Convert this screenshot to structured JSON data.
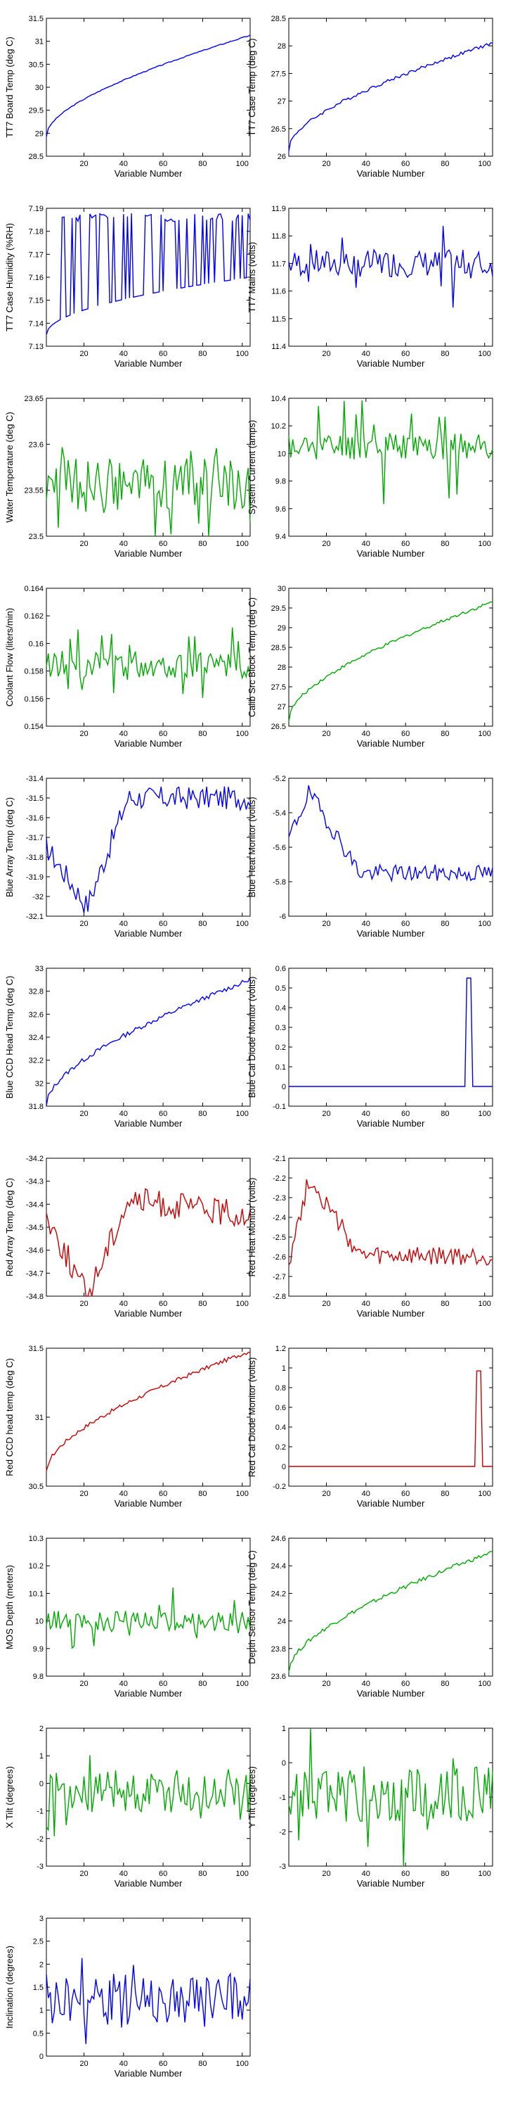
{
  "charts": [
    {
      "ylabel": "TT7 Board Temp (deg C)",
      "yticks": [
        "28.5",
        "29",
        "29.5",
        "30",
        "30.5",
        "31",
        "31.5"
      ],
      "color": "#0000ff",
      "gen": "ramp",
      "params": {
        "a": 28.93,
        "b": 31.13,
        "noise": 0.01
      }
    },
    {
      "ylabel": "TT7 Case Temp (deg C)",
      "yticks": [
        "26",
        "26.5",
        "27",
        "27.5",
        "28",
        "28.5"
      ],
      "color": "#0000ff",
      "gen": "ramp",
      "params": {
        "a": 26.12,
        "b": 28.05,
        "noise": 0.03
      }
    },
    {
      "ylabel": "TT7 Case Humidity (%RH)",
      "yticks": [
        "7.13",
        "7.14",
        "7.15",
        "7.16",
        "7.17",
        "7.18",
        "7.19"
      ],
      "color": "#0000ff",
      "gen": "humidity",
      "params": {
        "low_a": 7.135,
        "low_b": 7.16,
        "high": 7.186
      }
    },
    {
      "ylabel": "TT7 Mains  (volts)",
      "yticks": [
        "11.4",
        "11.5",
        "11.6",
        "11.7",
        "11.8",
        "11.9"
      ],
      "color": "#0000ff",
      "gen": "noise",
      "params": {
        "mean": 11.7,
        "amp": 0.05,
        "dip": 0.18,
        "seed": 4
      }
    },
    {
      "ylabel": "Water Temperature (deg C)",
      "yticks": [
        "23.5",
        "23.55",
        "23.6",
        "23.65"
      ],
      "color": "#00aa00",
      "gen": "noise",
      "params": {
        "mean": 23.555,
        "amp": 0.03,
        "dip": 0.06,
        "seed": 5
      }
    },
    {
      "ylabel": "System Current (amps)",
      "yticks": [
        "9.4",
        "9.6",
        "9.8",
        "10",
        "10.2",
        "10.4"
      ],
      "color": "#00aa00",
      "gen": "noise",
      "params": {
        "mean": 10.05,
        "amp": 0.1,
        "dip": 0.4,
        "seed": 6
      }
    },
    {
      "ylabel": "Coolant Flow (liters/min)",
      "yticks": [
        "0.154",
        "0.156",
        "0.158",
        "0.16",
        "0.162",
        "0.164"
      ],
      "color": "#00aa00",
      "gen": "noise",
      "params": {
        "mean": 0.1585,
        "amp": 0.001,
        "dip": 0.0025,
        "seed": 7
      }
    },
    {
      "ylabel": "Calib Src Block Temp (deg C)",
      "yticks": [
        "26.5",
        "27",
        "27.5",
        "28",
        "28.5",
        "29",
        "29.5",
        "30"
      ],
      "color": "#00aa00",
      "gen": "ramp",
      "params": {
        "a": 26.65,
        "b": 29.65,
        "noise": 0.04
      }
    },
    {
      "ylabel": "Blue Array Temp (deg C)",
      "yticks": [
        "-32.1",
        "-32",
        "-31.9",
        "-31.8",
        "-31.7",
        "-31.6",
        "-31.5",
        "-31.4"
      ],
      "color": "#0000ff",
      "gen": "array",
      "params": {
        "start": -31.75,
        "low": -32.05,
        "high": -31.5,
        "end": -31.5,
        "amp": 0.06,
        "seed": 9
      }
    },
    {
      "ylabel": "Blue Heat Monitor (volts)",
      "yticks": [
        "-6",
        "-5.8",
        "-5.6",
        "-5.4",
        "-5.2"
      ],
      "color": "#0000ff",
      "gen": "heat",
      "params": {
        "start": -5.55,
        "peak": -5.28,
        "plateau": -5.75,
        "amp": 0.05,
        "seed": 10
      }
    },
    {
      "ylabel": "Blue CCD Head Temp (deg C)",
      "yticks": [
        "31.8",
        "32",
        "32.2",
        "32.4",
        "32.6",
        "32.8",
        "33"
      ],
      "color": "#0000ff",
      "gen": "ramp",
      "params": {
        "a": 31.8,
        "b": 32.9,
        "noise": 0.02
      }
    },
    {
      "ylabel": "Blue Cal Diode Monitor (volts)",
      "yticks": [
        "-0.1",
        "0",
        "0.1",
        "0.2",
        "0.3",
        "0.4",
        "0.5",
        "0.6"
      ],
      "color": "#0000ff",
      "gen": "spike",
      "params": {
        "base": 0.0,
        "peak": 0.55,
        "at": 91
      }
    },
    {
      "ylabel": "Red Array Temp (deg C)",
      "yticks": [
        "-34.8",
        "-34.7",
        "-34.6",
        "-34.5",
        "-34.4",
        "-34.3",
        "-34.2"
      ],
      "color": "#cc0000",
      "gen": "array",
      "params": {
        "start": -34.45,
        "low": -34.8,
        "high": -34.38,
        "end": -34.45,
        "amp": 0.06,
        "seed": 13
      }
    },
    {
      "ylabel": "Red Heat Monitor (volts)",
      "yticks": [
        "-2.8",
        "-2.7",
        "-2.6",
        "-2.5",
        "-2.4",
        "-2.3",
        "-2.2",
        "-2.1"
      ],
      "color": "#cc0000",
      "gen": "heat",
      "params": {
        "start": -2.62,
        "peak": -2.2,
        "plateau": -2.6,
        "amp": 0.05,
        "seed": 14
      }
    },
    {
      "ylabel": "Red CCD head temp (deg C)",
      "yticks": [
        "30.5",
        "31",
        "31.5"
      ],
      "color": "#cc0000",
      "gen": "ramp",
      "params": {
        "a": 30.6,
        "b": 31.48,
        "noise": 0.015
      }
    },
    {
      "ylabel": "Red Cal Diode Monitor (volts)",
      "yticks": [
        "-0.2",
        "0",
        "0.2",
        "0.4",
        "0.6",
        "0.8",
        "1",
        "1.2"
      ],
      "color": "#cc0000",
      "gen": "spike",
      "params": {
        "base": 0.0,
        "peak": 0.97,
        "at": 96
      }
    },
    {
      "ylabel": "MOS Depth  (meters)",
      "yticks": [
        "9.8",
        "9.9",
        "10",
        "10.1",
        "10.2",
        "10.3"
      ],
      "color": "#00aa00",
      "gen": "noise",
      "params": {
        "mean": 10.0,
        "amp": 0.04,
        "dip": 0.1,
        "seed": 17
      }
    },
    {
      "ylabel": "Depth Sensor Temp (deg C)",
      "yticks": [
        "23.6",
        "23.8",
        "24",
        "24.2",
        "24.4",
        "24.6"
      ],
      "color": "#00aa00",
      "gen": "ramp",
      "params": {
        "a": 23.63,
        "b": 24.5,
        "noise": 0.015
      }
    },
    {
      "ylabel": "X Tilt  (degrees)",
      "yticks": [
        "-3",
        "-2",
        "-1",
        "0",
        "1",
        "2"
      ],
      "color": "#00aa00",
      "gen": "noise",
      "params": {
        "mean": -0.3,
        "amp": 0.8,
        "dip": 1.8,
        "seed": 19
      }
    },
    {
      "ylabel": "Y Tilt  (degrees)",
      "yticks": [
        "-3",
        "-2",
        "-1",
        "0",
        "1"
      ],
      "color": "#00aa00",
      "gen": "noise",
      "params": {
        "mean": -0.9,
        "amp": 0.8,
        "dip": 1.8,
        "seed": 20
      }
    },
    {
      "ylabel": "Inclination  (degrees)",
      "yticks": [
        "0",
        "0.5",
        "1",
        "1.5",
        "2",
        "2.5",
        "3"
      ],
      "color": "#0000ff",
      "gen": "noise",
      "params": {
        "mean": 1.2,
        "amp": 0.6,
        "dip": 0.9,
        "seed": 21
      }
    }
  ],
  "xlabel": "Variable Number",
  "xticks": [
    "20",
    "40",
    "60",
    "80",
    "100"
  ],
  "chart_data": {
    "type": "line",
    "x_range": [
      1,
      104
    ],
    "xlabel": "Variable Number"
  }
}
